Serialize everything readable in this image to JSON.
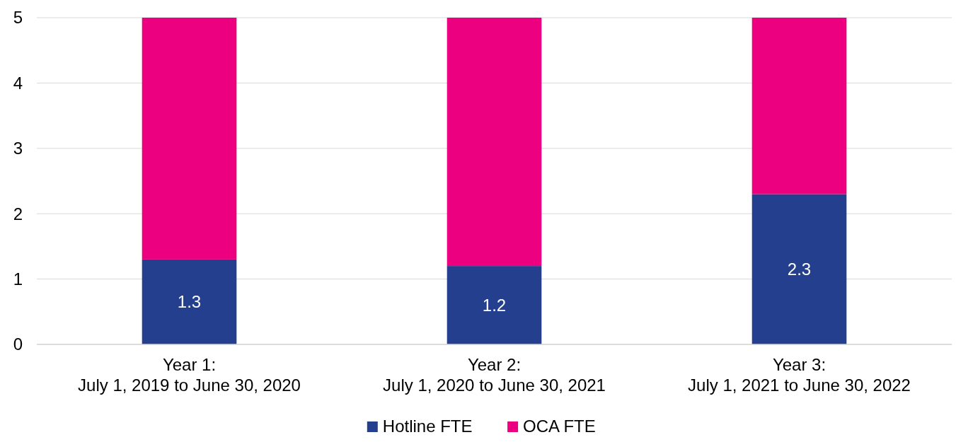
{
  "chart_data": {
    "type": "bar",
    "stacked": true,
    "categories": [
      "Year 1:\nJuly 1, 2019 to June 30, 2020",
      "Year 2:\nJuly 1, 2020 to June 30, 2021",
      "Year 3:\nJuly 1, 2021 to June 30, 2022"
    ],
    "series": [
      {
        "name": "Hotline FTE",
        "color": "#233f8d",
        "values": [
          1.3,
          1.2,
          2.3
        ],
        "value_labels": [
          "1.3",
          "1.2",
          "2.3"
        ]
      },
      {
        "name": "OCA FTE",
        "color": "#ec0080",
        "values": [
          3.7,
          3.8,
          2.7
        ]
      }
    ],
    "ylim": [
      0,
      5
    ],
    "yticks": [
      0,
      1,
      2,
      3,
      4,
      5
    ],
    "grid": "y",
    "legend": "bottom"
  }
}
